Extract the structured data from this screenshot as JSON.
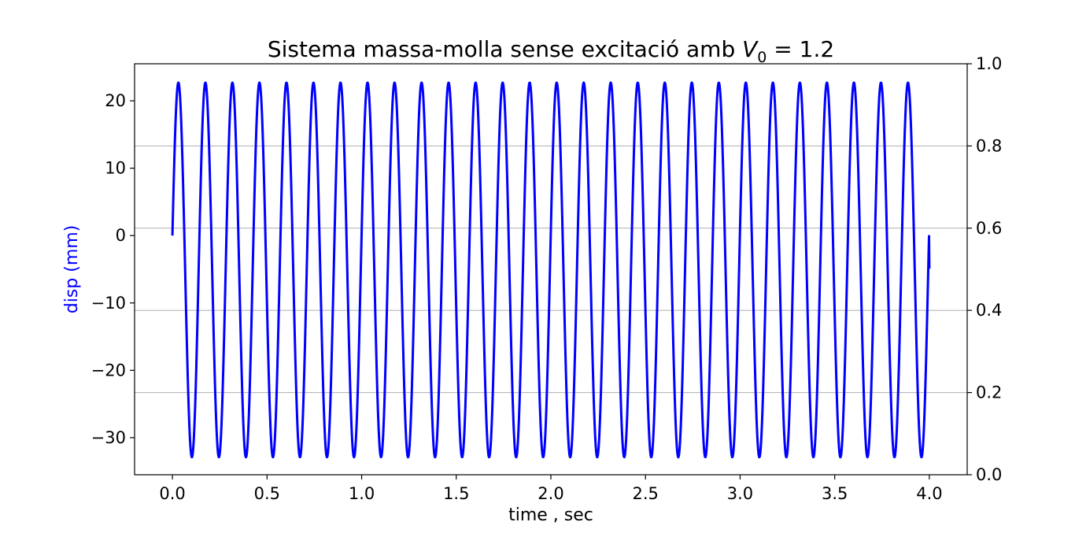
{
  "chart_data": {
    "type": "line",
    "title": {
      "main": "Sistema massa-molla sense excitació amb ",
      "var": "V",
      "sub": "0",
      "rest": " = 1.2"
    },
    "xlabel": "time , sec",
    "ylabel": "disp (mm)",
    "ylabel_color": "#0000ff",
    "xlim": [
      -0.2,
      4.2
    ],
    "ylim": [
      -35.5,
      25.5
    ],
    "y2lim": [
      0.0,
      1.0
    ],
    "xticks": [
      "0.0",
      "0.5",
      "1.0",
      "1.5",
      "2.0",
      "2.5",
      "3.0",
      "3.5",
      "4.0"
    ],
    "xtick_values": [
      0.0,
      0.5,
      1.0,
      1.5,
      2.0,
      2.5,
      3.0,
      3.5,
      4.0
    ],
    "yticks": [
      "−30",
      "−20",
      "−10",
      "0",
      "10",
      "20"
    ],
    "ytick_values": [
      -30,
      -20,
      -10,
      0,
      10,
      20
    ],
    "y2ticks": [
      "0.0",
      "0.2",
      "0.4",
      "0.6",
      "0.8",
      "1.0"
    ],
    "y2tick_values": [
      0.0,
      0.2,
      0.4,
      0.6,
      0.8,
      1.0
    ],
    "grid": "right-axis horizontal",
    "grid_color": "#b0b0b0",
    "series": [
      {
        "color": "#0000ff",
        "x_range": [
          0.0,
          4.0
        ],
        "offset": -5.1,
        "amplitude": 27.8,
        "period": 0.1428,
        "start_value": 0.0,
        "end_value": -4.9
      }
    ]
  }
}
